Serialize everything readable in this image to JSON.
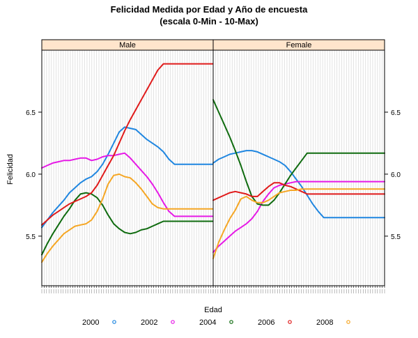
{
  "chart_data": {
    "type": "line",
    "title": "Felicidad Medida por Edad y Año de encuesta",
    "subtitle": "(escala 0-Min - 10-Max)",
    "xlabel": "Edad",
    "ylabel": "Felicidad",
    "x": [
      18,
      20,
      22,
      24,
      26,
      28,
      30,
      32,
      34,
      36,
      38,
      40,
      42,
      44,
      46,
      48,
      50,
      52,
      54,
      56,
      58,
      60,
      62,
      64,
      66,
      68,
      70,
      72,
      74,
      76,
      78,
      80
    ],
    "ylim": [
      5.1,
      7.0
    ],
    "yticks": [
      5.5,
      6.0,
      6.5
    ],
    "ytick_labels": [
      "5.5",
      "6.0",
      "6.5"
    ],
    "grid": true,
    "legend_position": "bottom",
    "panels": [
      {
        "name": "Male",
        "series": [
          {
            "name": "2000",
            "color": "#1f86e0",
            "values": [
              5.57,
              5.63,
              5.69,
              5.74,
              5.79,
              5.85,
              5.89,
              5.93,
              5.96,
              5.98,
              6.02,
              6.08,
              6.16,
              6.25,
              6.34,
              6.38,
              6.37,
              6.36,
              6.32,
              6.28,
              6.25,
              6.22,
              6.18,
              6.12,
              6.08,
              6.08,
              6.08,
              6.08,
              6.08,
              6.08,
              6.08,
              6.08
            ]
          },
          {
            "name": "2002",
            "color": "#e619e6",
            "values": [
              6.05,
              6.07,
              6.09,
              6.1,
              6.11,
              6.11,
              6.12,
              6.13,
              6.13,
              6.11,
              6.12,
              6.14,
              6.15,
              6.15,
              6.16,
              6.17,
              6.13,
              6.08,
              6.03,
              5.98,
              5.92,
              5.85,
              5.77,
              5.7,
              5.66,
              5.66,
              5.66,
              5.66,
              5.66,
              5.66,
              5.66,
              5.66
            ]
          },
          {
            "name": "2004",
            "color": "#0f6b0f",
            "values": [
              5.35,
              5.44,
              5.52,
              5.59,
              5.66,
              5.72,
              5.79,
              5.84,
              5.85,
              5.84,
              5.81,
              5.75,
              5.67,
              5.6,
              5.56,
              5.53,
              5.52,
              5.53,
              5.55,
              5.56,
              5.58,
              5.6,
              5.62,
              5.62,
              5.62,
              5.62,
              5.62,
              5.62,
              5.62,
              5.62,
              5.62,
              5.62
            ]
          },
          {
            "name": "2006",
            "color": "#e01a1a",
            "values": [
              5.59,
              5.63,
              5.67,
              5.7,
              5.73,
              5.76,
              5.78,
              5.8,
              5.82,
              5.85,
              5.91,
              5.99,
              6.07,
              6.15,
              6.25,
              6.35,
              6.44,
              6.52,
              6.6,
              6.68,
              6.76,
              6.84,
              6.89,
              6.89,
              6.89,
              6.89,
              6.89,
              6.89,
              6.89,
              6.89,
              6.89,
              6.89
            ]
          },
          {
            "name": "2008",
            "color": "#f5a623",
            "values": [
              5.29,
              5.36,
              5.42,
              5.47,
              5.52,
              5.55,
              5.58,
              5.59,
              5.6,
              5.63,
              5.7,
              5.8,
              5.92,
              5.99,
              6.0,
              5.98,
              5.97,
              5.93,
              5.88,
              5.82,
              5.76,
              5.73,
              5.72,
              5.72,
              5.72,
              5.72,
              5.72,
              5.72,
              5.72,
              5.72,
              5.72,
              5.72
            ]
          }
        ]
      },
      {
        "name": "Female",
        "series": [
          {
            "name": "2000",
            "color": "#1f86e0",
            "values": [
              6.09,
              6.12,
              6.14,
              6.16,
              6.17,
              6.18,
              6.19,
              6.19,
              6.18,
              6.16,
              6.14,
              6.12,
              6.1,
              6.07,
              6.02,
              5.96,
              5.9,
              5.83,
              5.76,
              5.7,
              5.65,
              5.65,
              5.65,
              5.65,
              5.65,
              5.65,
              5.65,
              5.65,
              5.65,
              5.65,
              5.65,
              5.65
            ]
          },
          {
            "name": "2002",
            "color": "#e619e6",
            "values": [
              5.37,
              5.42,
              5.46,
              5.5,
              5.54,
              5.57,
              5.6,
              5.64,
              5.7,
              5.78,
              5.84,
              5.89,
              5.91,
              5.92,
              5.93,
              5.94,
              5.94,
              5.94,
              5.94,
              5.94,
              5.94,
              5.94,
              5.94,
              5.94,
              5.94,
              5.94,
              5.94,
              5.94,
              5.94,
              5.94,
              5.94,
              5.94
            ]
          },
          {
            "name": "2004",
            "color": "#0f6b0f",
            "values": [
              6.6,
              6.5,
              6.4,
              6.3,
              6.19,
              6.07,
              5.94,
              5.82,
              5.76,
              5.75,
              5.75,
              5.79,
              5.85,
              5.92,
              5.99,
              6.05,
              6.11,
              6.17,
              6.17,
              6.17,
              6.17,
              6.17,
              6.17,
              6.17,
              6.17,
              6.17,
              6.17,
              6.17,
              6.17,
              6.17,
              6.17,
              6.17
            ]
          },
          {
            "name": "2006",
            "color": "#e01a1a",
            "values": [
              5.79,
              5.81,
              5.83,
              5.85,
              5.86,
              5.85,
              5.84,
              5.82,
              5.82,
              5.86,
              5.9,
              5.93,
              5.93,
              5.91,
              5.9,
              5.88,
              5.86,
              5.84,
              5.84,
              5.84,
              5.84,
              5.84,
              5.84,
              5.84,
              5.84,
              5.84,
              5.84,
              5.84,
              5.84,
              5.84,
              5.84,
              5.84
            ]
          },
          {
            "name": "2008",
            "color": "#f5a623",
            "values": [
              5.32,
              5.45,
              5.55,
              5.64,
              5.71,
              5.8,
              5.82,
              5.79,
              5.77,
              5.77,
              5.79,
              5.82,
              5.85,
              5.86,
              5.87,
              5.87,
              5.88,
              5.88,
              5.88,
              5.88,
              5.88,
              5.88,
              5.88,
              5.88,
              5.88,
              5.88,
              5.88,
              5.88,
              5.88,
              5.88,
              5.88,
              5.88
            ]
          }
        ]
      }
    ],
    "legend": [
      {
        "name": "2000",
        "color": "#1f86e0"
      },
      {
        "name": "2002",
        "color": "#e619e6"
      },
      {
        "name": "2004",
        "color": "#0f6b0f"
      },
      {
        "name": "2006",
        "color": "#e01a1a"
      },
      {
        "name": "2008",
        "color": "#f5a623"
      }
    ]
  }
}
